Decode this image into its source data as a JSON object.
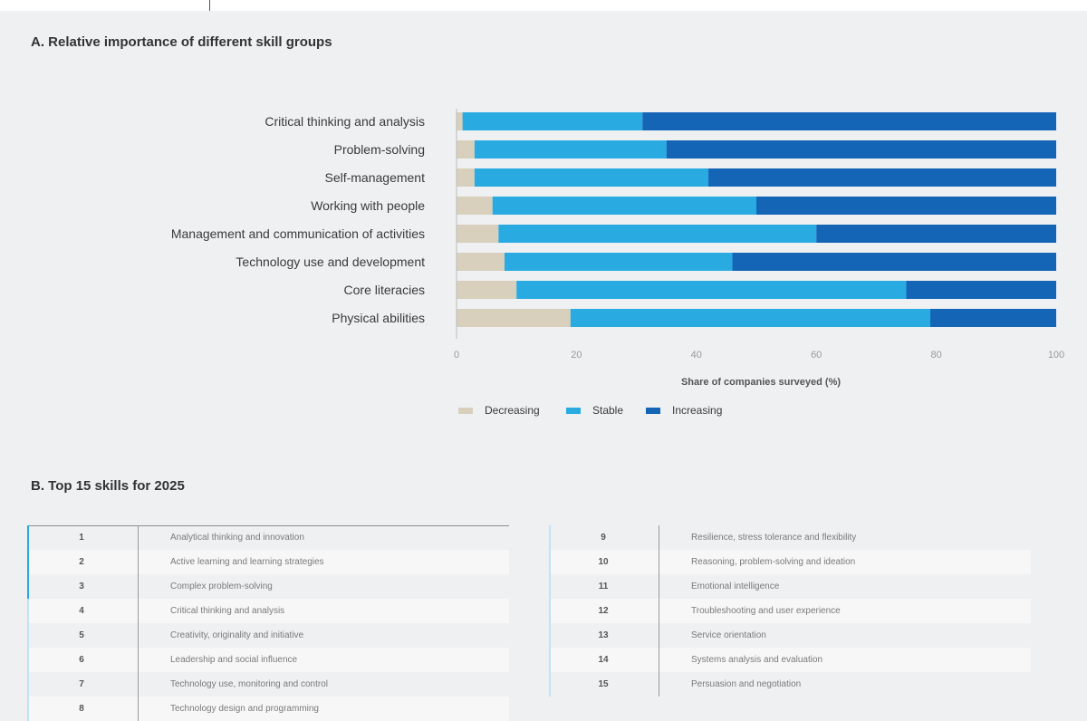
{
  "colors": {
    "decreasing": "#d8cfbd",
    "stable": "#29abe2",
    "increasing": "#1565b7"
  },
  "chart_data": {
    "type": "bar",
    "orientation": "horizontal",
    "stacked": true,
    "title": "A. Relative importance of different skill groups",
    "xlabel": "Share of companies surveyed (%)",
    "ylabel": "",
    "xlim": [
      0,
      100
    ],
    "xticks": [
      "0",
      "20",
      "40",
      "60",
      "80",
      "100"
    ],
    "legend_position": "bottom",
    "categories": [
      "Critical thinking and analysis",
      "Problem-solving",
      "Self-management",
      "Working with people",
      "Management and communication of activities",
      "Technology use and development",
      "Core literacies",
      "Physical abilities"
    ],
    "series": [
      {
        "name": "Decreasing",
        "values": [
          1,
          3,
          3,
          6,
          7,
          8,
          10,
          19
        ]
      },
      {
        "name": "Stable",
        "values": [
          30,
          32,
          39,
          44,
          53,
          38,
          65,
          60
        ]
      },
      {
        "name": "Increasing",
        "values": [
          69,
          65,
          58,
          50,
          40,
          54,
          25,
          21
        ]
      }
    ]
  },
  "sectionB": {
    "title": "B. Top 15 skills for 2025",
    "left": [
      {
        "rank": "1",
        "skill": "Analytical thinking and innovation"
      },
      {
        "rank": "2",
        "skill": "Active learning and learning strategies"
      },
      {
        "rank": "3",
        "skill": "Complex problem-solving"
      },
      {
        "rank": "4",
        "skill": "Critical thinking and analysis"
      },
      {
        "rank": "5",
        "skill": "Creativity, originality and initiative"
      },
      {
        "rank": "6",
        "skill": "Leadership and social influence"
      },
      {
        "rank": "7",
        "skill": "Technology use, monitoring and control"
      },
      {
        "rank": "8",
        "skill": "Technology design and programming"
      }
    ],
    "right": [
      {
        "rank": "9",
        "skill": "Resilience, stress tolerance and flexibility"
      },
      {
        "rank": "10",
        "skill": "Reasoning, problem-solving and ideation"
      },
      {
        "rank": "11",
        "skill": "Emotional intelligence"
      },
      {
        "rank": "12",
        "skill": "Troubleshooting and user experience"
      },
      {
        "rank": "13",
        "skill": "Service orientation"
      },
      {
        "rank": "14",
        "skill": "Systems analysis and evaluation"
      },
      {
        "rank": "15",
        "skill": "Persuasion and negotiation"
      }
    ]
  }
}
